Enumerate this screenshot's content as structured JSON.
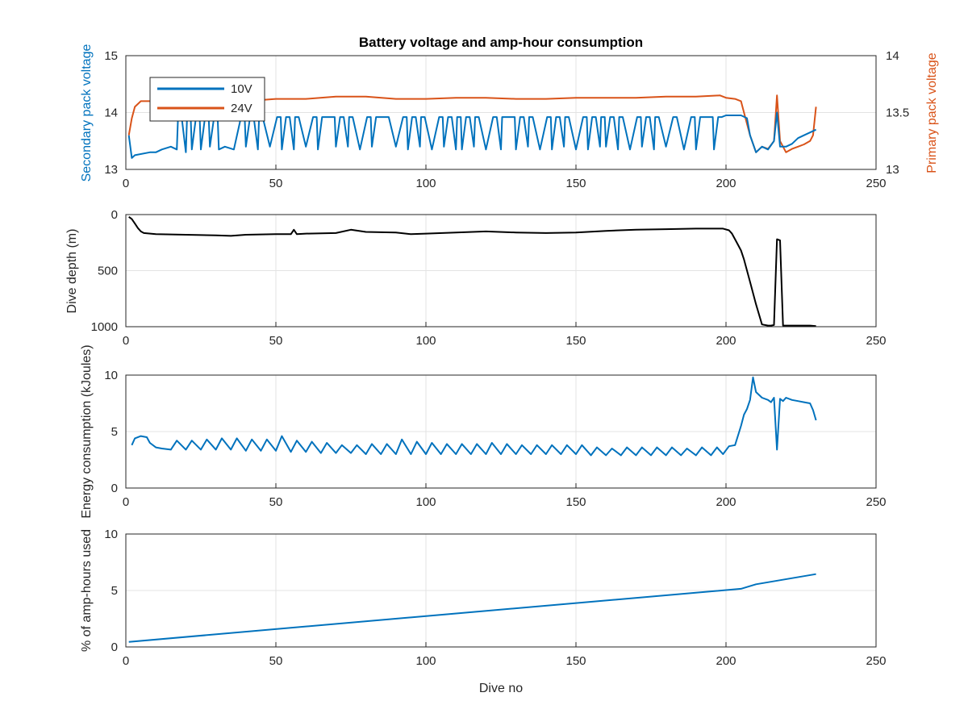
{
  "chart_data": [
    {
      "type": "line",
      "title": "Battery voltage and amp-hour consumption",
      "xlabel": "",
      "xlim": [
        0,
        250
      ],
      "xticks": [
        0,
        50,
        100,
        150,
        200,
        250
      ],
      "grid": true,
      "legend": {
        "placement": "top-left",
        "entries": [
          "10V",
          "24V"
        ]
      },
      "left_axis": {
        "label": "Secondary pack voltage",
        "ylim": [
          13,
          15
        ],
        "ticks": [
          13,
          14,
          15
        ],
        "color": "#0072bd"
      },
      "right_axis": {
        "label": "Primary pack voltage",
        "ylim": [
          13,
          14
        ],
        "ticks": [
          "13",
          "13.5",
          "14"
        ],
        "color": "#d95319"
      },
      "series": [
        {
          "name": "10V",
          "axis": "left",
          "color": "#0072bd",
          "x": [
            1,
            2,
            3,
            8,
            10,
            12,
            15,
            17,
            20,
            22,
            25,
            28,
            31,
            33,
            36,
            40,
            44,
            48,
            52,
            56,
            60,
            64,
            70,
            74,
            78,
            82,
            90,
            94,
            98,
            102,
            106,
            110,
            112,
            116,
            120,
            125,
            130,
            134,
            138,
            142,
            146,
            150,
            154,
            158,
            160,
            164,
            168,
            172,
            176,
            180,
            186,
            190,
            196,
            200,
            205,
            207,
            208,
            210,
            212,
            214,
            216,
            217,
            218,
            219,
            220,
            222,
            224,
            226,
            228,
            230
          ],
          "y": [
            13.6,
            13.2,
            13.25,
            13.3,
            13.3,
            13.35,
            13.4,
            13.35,
            13.3,
            13.35,
            13.35,
            13.4,
            13.35,
            13.4,
            13.35,
            13.4,
            13.35,
            13.4,
            13.35,
            13.35,
            13.4,
            13.35,
            13.4,
            13.4,
            13.35,
            13.4,
            13.4,
            13.35,
            13.4,
            13.35,
            13.4,
            13.35,
            13.35,
            13.4,
            13.35,
            13.35,
            13.35,
            13.4,
            13.35,
            13.35,
            13.4,
            13.35,
            13.35,
            13.4,
            13.4,
            13.35,
            13.35,
            13.4,
            13.35,
            13.4,
            13.35,
            13.35,
            13.35,
            13.95,
            13.95,
            13.9,
            13.6,
            13.3,
            13.4,
            13.35,
            13.5,
            14.0,
            13.4,
            13.4,
            13.4,
            13.45,
            13.55,
            13.6,
            13.65,
            13.7
          ],
          "oscillation": {
            "high": 13.92,
            "dive_range": [
              10,
              200
            ]
          }
        },
        {
          "name": "24V",
          "axis": "right",
          "color": "#d95319",
          "x": [
            1,
            2,
            3,
            5,
            8,
            12,
            20,
            30,
            40,
            50,
            60,
            70,
            80,
            90,
            100,
            110,
            120,
            130,
            140,
            150,
            160,
            170,
            180,
            190,
            198,
            200,
            203,
            205,
            206,
            208,
            210,
            212,
            214,
            216,
            217,
            218,
            219,
            220,
            222,
            224,
            226,
            228,
            229,
            230
          ],
          "y": [
            13.3,
            13.45,
            13.55,
            13.6,
            13.6,
            13.6,
            13.6,
            13.62,
            13.6,
            13.62,
            13.62,
            13.64,
            13.64,
            13.62,
            13.62,
            13.63,
            13.63,
            13.62,
            13.62,
            13.63,
            13.63,
            13.63,
            13.64,
            13.64,
            13.65,
            13.63,
            13.62,
            13.6,
            13.5,
            13.3,
            13.15,
            13.2,
            13.18,
            13.25,
            13.65,
            13.25,
            13.2,
            13.15,
            13.18,
            13.2,
            13.22,
            13.25,
            13.3,
            13.55
          ]
        }
      ]
    },
    {
      "type": "line",
      "title": "",
      "xlabel": "",
      "ylabel": "Dive depth (m)",
      "xlim": [
        0,
        250
      ],
      "ylim": [
        0,
        1000
      ],
      "yreversed": true,
      "xticks": [
        0,
        50,
        100,
        150,
        200,
        250
      ],
      "yticks": [
        0,
        500,
        1000
      ],
      "grid": true,
      "series": [
        {
          "color": "#000000",
          "x": [
            1,
            2,
            3,
            4,
            5,
            6,
            10,
            20,
            30,
            35,
            40,
            50,
            55,
            56,
            57,
            60,
            70,
            75,
            80,
            90,
            95,
            100,
            110,
            120,
            130,
            140,
            150,
            160,
            170,
            180,
            190,
            199,
            201,
            202,
            203,
            204,
            205,
            206,
            208,
            210,
            212,
            214,
            215,
            216,
            217,
            218,
            219,
            220,
            222,
            224,
            226,
            228,
            230
          ],
          "y": [
            20,
            40,
            80,
            120,
            150,
            165,
            175,
            180,
            185,
            190,
            180,
            175,
            175,
            135,
            175,
            170,
            165,
            135,
            155,
            160,
            175,
            170,
            160,
            150,
            160,
            165,
            160,
            145,
            135,
            130,
            125,
            125,
            140,
            170,
            220,
            270,
            320,
            400,
            600,
            800,
            980,
            990,
            990,
            985,
            220,
            230,
            990,
            990,
            990,
            990,
            990,
            990,
            995
          ]
        }
      ]
    },
    {
      "type": "line",
      "title": "",
      "xlabel": "",
      "ylabel": "Energy consumption (kJoules)",
      "xlim": [
        0,
        250
      ],
      "ylim": [
        0,
        10
      ],
      "xticks": [
        0,
        50,
        100,
        150,
        200,
        250
      ],
      "yticks": [
        0,
        5,
        10
      ],
      "grid": true,
      "series": [
        {
          "color": "#0072bd",
          "x": [
            2,
            3,
            5,
            7,
            8,
            10,
            12,
            15,
            17,
            20,
            22,
            25,
            27,
            30,
            32,
            35,
            37,
            40,
            42,
            45,
            47,
            50,
            52,
            55,
            57,
            60,
            62,
            65,
            67,
            70,
            72,
            75,
            77,
            80,
            82,
            85,
            87,
            90,
            92,
            95,
            97,
            100,
            102,
            105,
            107,
            110,
            112,
            115,
            117,
            120,
            122,
            125,
            127,
            130,
            132,
            135,
            137,
            140,
            142,
            145,
            147,
            150,
            152,
            155,
            157,
            160,
            162,
            165,
            167,
            170,
            172,
            175,
            177,
            180,
            182,
            185,
            187,
            190,
            192,
            195,
            197,
            199,
            201,
            203,
            205,
            206,
            207,
            208,
            209,
            210,
            212,
            214,
            215,
            216,
            217,
            218,
            219,
            220,
            222,
            224,
            226,
            228,
            229,
            230
          ],
          "y": [
            3.8,
            4.4,
            4.6,
            4.5,
            4.0,
            3.6,
            3.5,
            3.4,
            4.2,
            3.4,
            4.2,
            3.4,
            4.3,
            3.4,
            4.4,
            3.4,
            4.4,
            3.3,
            4.3,
            3.3,
            4.3,
            3.3,
            4.6,
            3.2,
            4.2,
            3.2,
            4.1,
            3.1,
            4.0,
            3.1,
            3.8,
            3.1,
            3.8,
            3.0,
            3.9,
            3.0,
            3.9,
            3.0,
            4.3,
            3.0,
            4.1,
            3.0,
            4.0,
            3.0,
            3.9,
            3.0,
            3.9,
            3.0,
            3.9,
            3.0,
            4.0,
            3.0,
            3.9,
            3.0,
            3.8,
            3.0,
            3.8,
            3.0,
            3.8,
            3.0,
            3.8,
            3.0,
            3.8,
            2.9,
            3.6,
            2.9,
            3.5,
            2.9,
            3.6,
            2.9,
            3.6,
            2.9,
            3.6,
            2.9,
            3.6,
            2.9,
            3.5,
            2.9,
            3.6,
            2.9,
            3.6,
            3.0,
            3.7,
            3.8,
            5.5,
            6.5,
            7.0,
            7.8,
            9.8,
            8.5,
            8.0,
            7.8,
            7.6,
            8.0,
            3.4,
            7.9,
            7.7,
            8.0,
            7.8,
            7.7,
            7.6,
            7.5,
            6.9,
            6.0
          ]
        }
      ]
    },
    {
      "type": "line",
      "title": "",
      "xlabel": "Dive no",
      "ylabel": "% of amp-hours used",
      "xlim": [
        0,
        250
      ],
      "ylim": [
        0,
        10
      ],
      "xticks": [
        0,
        50,
        100,
        150,
        200,
        250
      ],
      "yticks": [
        0,
        5,
        10
      ],
      "grid": true,
      "series": [
        {
          "color": "#0072bd",
          "x": [
            1,
            205,
            210,
            230
          ],
          "y": [
            0.45,
            5.15,
            5.55,
            6.45
          ]
        }
      ]
    }
  ]
}
